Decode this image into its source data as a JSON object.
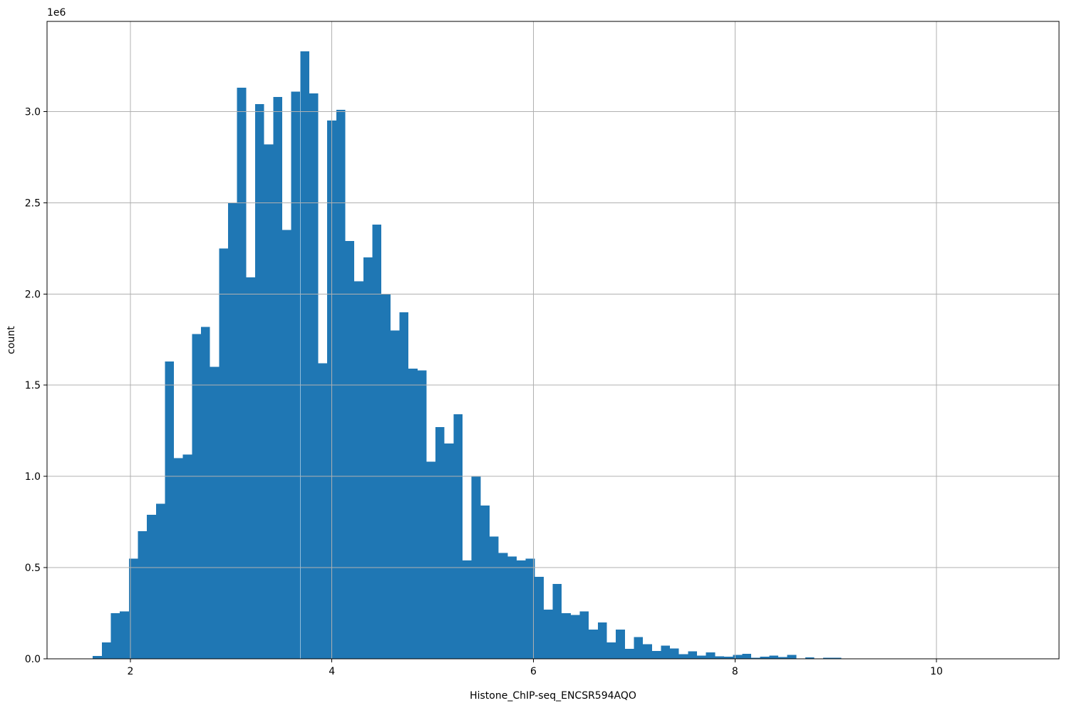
{
  "figure": {
    "xlabel": "Histone_ChIP-seq_ENCSR594AQO",
    "ylabel": "count",
    "offset_text": "1e6"
  },
  "chart_data": {
    "type": "bar",
    "subtype": "histogram",
    "title": "",
    "xlabel": "Histone_ChIP-seq_ENCSR594AQO",
    "ylabel": "count",
    "offset_text": "1e6",
    "legend": "none",
    "grid": true,
    "grid_on_top": true,
    "bar_color": "#1f77b4",
    "grid_color": "#b0b0b0",
    "spine_color": "#000000",
    "xlim": [
      1.173,
      11.216
    ],
    "ylim": [
      0,
      3494000
    ],
    "x_ticks": [
      2,
      4,
      6,
      8,
      10
    ],
    "x_tick_labels": [
      "2",
      "4",
      "6",
      "8",
      "10"
    ],
    "y_ticks": [
      0,
      500000,
      1000000,
      1500000,
      2000000,
      2500000,
      3000000
    ],
    "y_tick_labels": [
      "0.0",
      "0.5",
      "1.0",
      "1.5",
      "2.0",
      "2.5",
      "3.0"
    ],
    "bin_start": 1.627,
    "bin_width": 0.0895,
    "counts": [
      15000,
      90000,
      250000,
      260000,
      550000,
      700000,
      790000,
      850000,
      1630000,
      1100000,
      1120000,
      1780000,
      1820000,
      1600000,
      2250000,
      2500000,
      3130000,
      2090000,
      3040000,
      2820000,
      3080000,
      2350000,
      3110000,
      3330000,
      3100000,
      1620000,
      2950000,
      3010000,
      2290000,
      2070000,
      2200000,
      2380000,
      2000000,
      1800000,
      1900000,
      1590000,
      1580000,
      1080000,
      1270000,
      1180000,
      1340000,
      540000,
      1000000,
      840000,
      670000,
      580000,
      560000,
      540000,
      550000,
      450000,
      270000,
      410000,
      250000,
      240000,
      260000,
      160000,
      200000,
      90000,
      160000,
      55000,
      120000,
      80000,
      43000,
      72000,
      56000,
      26000,
      42000,
      17000,
      36000,
      13000,
      11000,
      22000,
      28000,
      5000,
      12000,
      17000,
      9000,
      21000,
      0,
      8000,
      0,
      6000,
      6000
    ]
  }
}
